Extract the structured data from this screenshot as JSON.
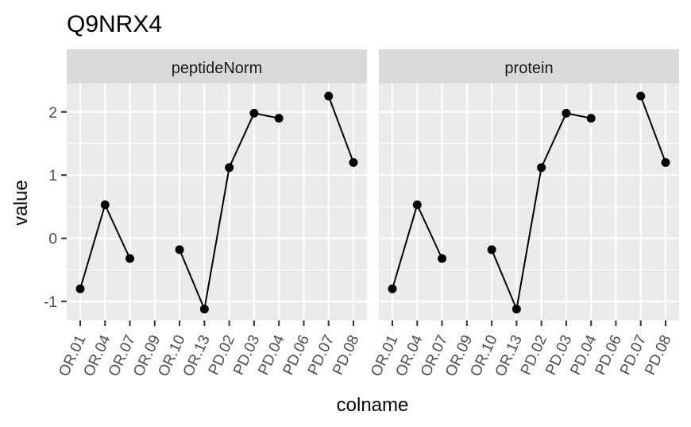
{
  "chart_data": {
    "type": "line",
    "title": "Q9NRX4",
    "xlabel": "colname",
    "ylabel": "value",
    "categories": [
      "OR.01",
      "OR.04",
      "OR.07",
      "OR.09",
      "OR.10",
      "OR.13",
      "PD.02",
      "PD.03",
      "PD.04",
      "PD.06",
      "PD.07",
      "PD.08"
    ],
    "y_ticks": [
      -1,
      0,
      1,
      2
    ],
    "y_tick_labels": [
      "-1",
      "0",
      "1",
      "2"
    ],
    "ylim": [
      -1.3,
      2.45
    ],
    "grid": true,
    "facets": [
      {
        "label": "peptideNorm",
        "values": [
          -0.8,
          0.53,
          -0.32,
          null,
          -0.18,
          -1.12,
          1.12,
          1.98,
          1.9,
          null,
          2.25,
          1.2
        ]
      },
      {
        "label": "protein",
        "values": [
          -0.8,
          0.53,
          -0.32,
          null,
          -0.18,
          -1.12,
          1.12,
          1.98,
          1.9,
          null,
          2.25,
          1.2
        ]
      }
    ],
    "colors": {
      "panel_bg": "#ebebeb",
      "strip_bg": "#d9d9d9",
      "grid": "#ffffff",
      "line": "#000000",
      "tick": "#333333"
    }
  }
}
